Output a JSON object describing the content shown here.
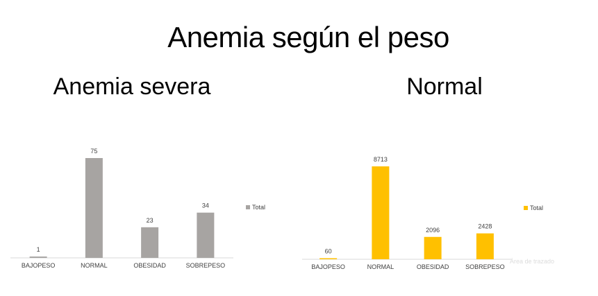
{
  "header": {
    "title": "Anemia según el peso"
  },
  "chart_data": [
    {
      "type": "bar",
      "title": "Anemia severa",
      "categories": [
        "BAJOPESO",
        "NORMAL",
        "OBESIDAD",
        "SOBREPESO"
      ],
      "series": [
        {
          "name": "Total",
          "values": [
            1,
            75,
            23,
            34
          ]
        }
      ],
      "ylim": [
        0,
        75
      ],
      "grid": false,
      "legend": "right",
      "color": "#a7a4a2"
    },
    {
      "type": "bar",
      "title": "Normal",
      "categories": [
        "BAJOPESO",
        "NORMAL",
        "OBESIDAD",
        "SOBREPESO"
      ],
      "series": [
        {
          "name": "Total",
          "values": [
            60,
            8713,
            2096,
            2428
          ]
        }
      ],
      "ylim": [
        0,
        8713
      ],
      "grid": false,
      "legend": "right",
      "color": "#ffc000"
    }
  ],
  "overlay": {
    "plot_area_hint": "Área de trazado"
  }
}
